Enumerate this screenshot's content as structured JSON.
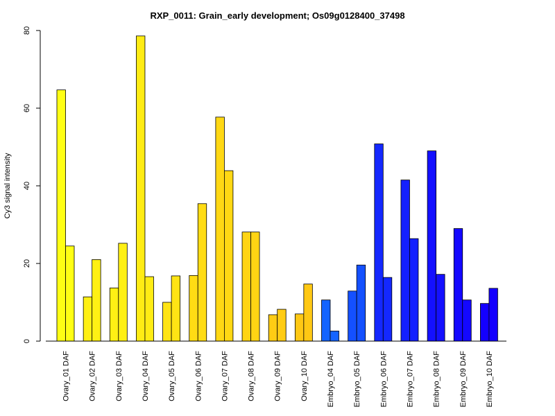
{
  "chart_data": {
    "type": "bar",
    "title": "RXP_0011: Grain_early development; Os09g0128400_37498",
    "ylabel": "Cy3 signal intensity",
    "xlabel": "",
    "ylim": [
      0,
      80
    ],
    "yticks": [
      0,
      20,
      40,
      60,
      80
    ],
    "grid": false,
    "bars_per_group": 2,
    "categories": [
      "Ovary_01 DAF",
      "Ovary_02 DAF",
      "Ovary_03 DAF",
      "Ovary_04 DAF",
      "Ovary_05 DAF",
      "Ovary_06 DAF",
      "Ovary_07 DAF",
      "Ovary_08 DAF",
      "Ovary_09 DAF",
      "Ovary_10 DAF",
      "Embryo_04 DAF",
      "Embryo_05 DAF",
      "Embryo_06 DAF",
      "Embryo_07 DAF",
      "Embryo_08 DAF",
      "Embryo_09 DAF",
      "Embryo_10 DAF"
    ],
    "values": [
      [
        64.7,
        24.5
      ],
      [
        11.4,
        21.0
      ],
      [
        13.7,
        25.2
      ],
      [
        78.6,
        16.6
      ],
      [
        10.0,
        16.8
      ],
      [
        16.9,
        35.4
      ],
      [
        57.7,
        43.9
      ],
      [
        28.1,
        28.1
      ],
      [
        6.8,
        8.2
      ],
      [
        7.0,
        14.7
      ],
      [
        10.6,
        2.6
      ],
      [
        12.9,
        19.6
      ],
      [
        50.8,
        16.4
      ],
      [
        41.5,
        26.4
      ],
      [
        49.0,
        17.2
      ],
      [
        29.0,
        10.6
      ],
      [
        9.7,
        13.6
      ]
    ],
    "colors": [
      "#ffff14",
      "#fff014",
      "#fff014",
      "#ffec14",
      "#ffe414",
      "#ffdc14",
      "#ffd814",
      "#ffd414",
      "#ffcc14",
      "#ffc814",
      "#1464ff",
      "#1450ff",
      "#1428ff",
      "#1420ff",
      "#1410ff",
      "#1408ff",
      "#1400ff"
    ]
  }
}
